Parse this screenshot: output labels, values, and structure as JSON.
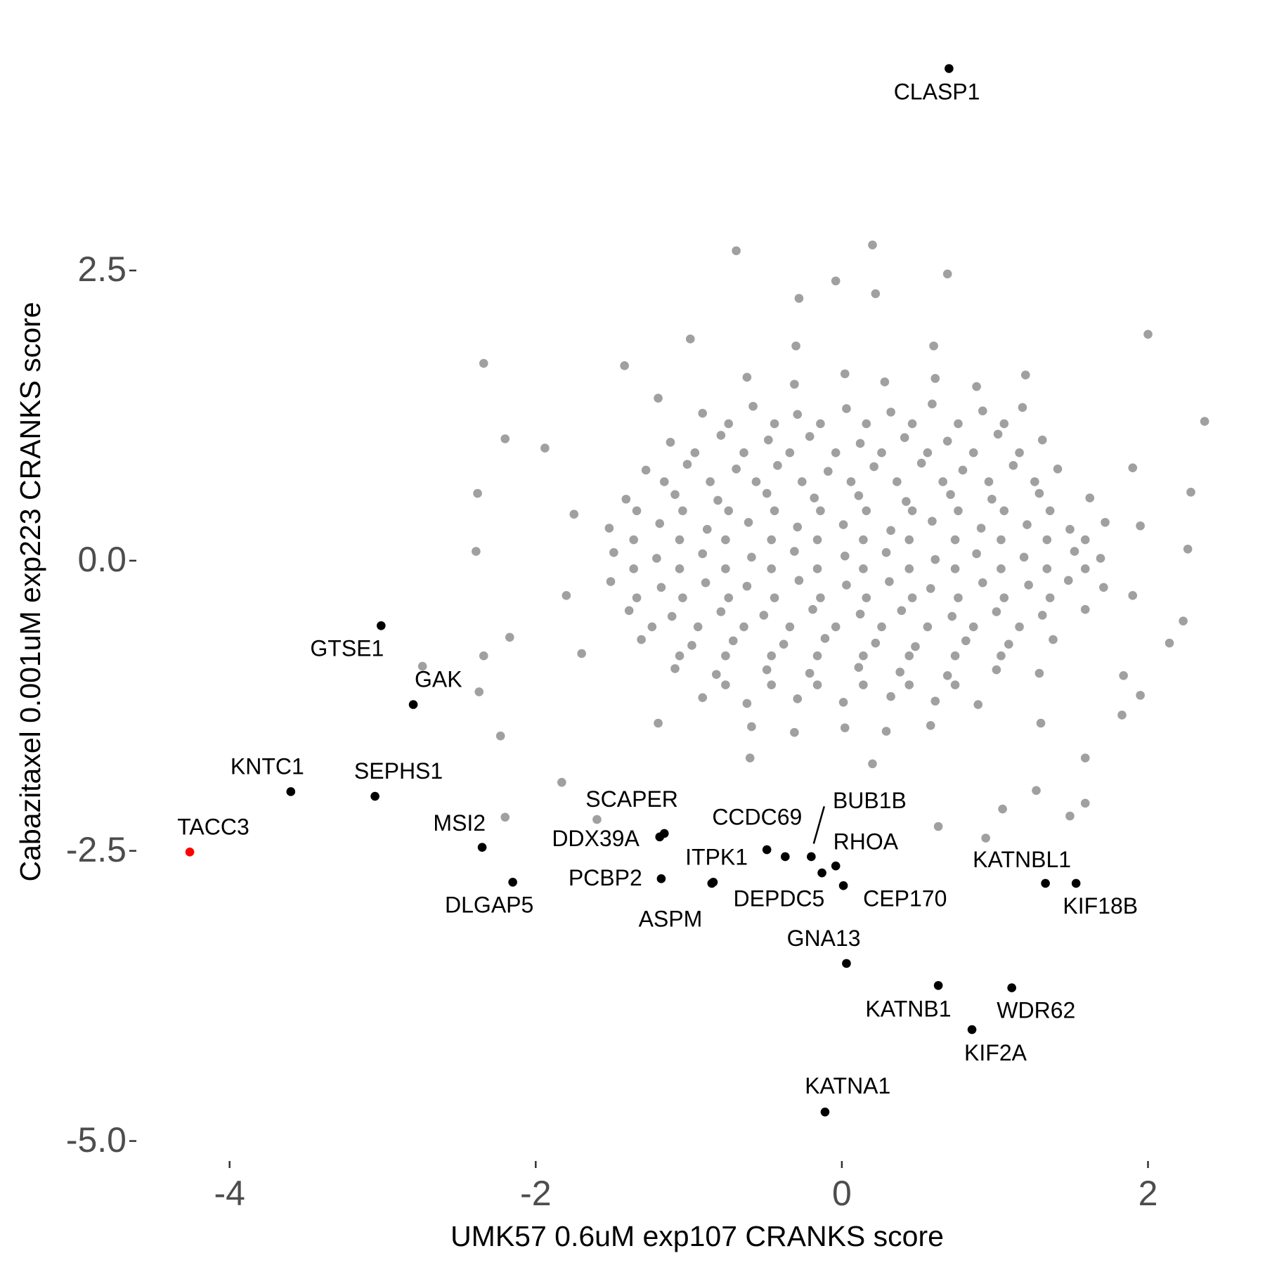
{
  "chart_data": {
    "type": "scatter",
    "xlabel": "UMK57 0.6uM exp107 CRANKS score",
    "ylabel": "Cabazitaxel 0.001uM exp223 CRANKS score",
    "xlim": [
      -4.6,
      2.42
    ],
    "ylim": [
      -5.16,
      4.34
    ],
    "xticks": [
      -4,
      -2,
      0,
      2
    ],
    "yticks": [
      2.5,
      {
        "value": 0,
        "label": "0.0"
      },
      -2.5,
      {
        "value": -5,
        "label": "-5.0"
      }
    ],
    "grid": false,
    "series": [
      {
        "color": "#a0a0a0",
        "x": [
          -0.62,
          -0.31,
          0.02,
          0.28,
          0.61,
          0.88,
          -0.91,
          -0.58,
          -0.29,
          0.03,
          0.32,
          0.59,
          0.92,
          1.18,
          -1.12,
          -0.79,
          -0.48,
          -0.21,
          0.12,
          0.41,
          0.69,
          1.02,
          1.31,
          -1.28,
          -1.01,
          -0.69,
          -0.42,
          -0.09,
          0.21,
          0.52,
          0.79,
          1.12,
          1.41,
          -1.41,
          -1.09,
          -0.81,
          -0.49,
          -0.18,
          0.11,
          0.42,
          0.71,
          0.98,
          1.29,
          1.62,
          -1.52,
          -1.19,
          -0.88,
          -0.61,
          -0.29,
          0.01,
          0.32,
          0.59,
          0.91,
          1.21,
          1.49,
          1.72,
          -1.49,
          -1.21,
          -0.91,
          -0.59,
          -0.31,
          0.02,
          0.29,
          0.61,
          0.88,
          1.19,
          1.52,
          1.69,
          -1.51,
          -1.18,
          -0.89,
          -0.62,
          -0.28,
          0.03,
          0.31,
          0.58,
          0.92,
          1.22,
          1.48,
          1.71,
          -1.39,
          -1.11,
          -0.79,
          -0.51,
          -0.19,
          0.12,
          0.39,
          0.72,
          1.01,
          1.31,
          1.59,
          -1.31,
          -0.98,
          -0.71,
          -0.38,
          -0.11,
          0.22,
          0.48,
          0.81,
          1.09,
          1.38,
          -1.09,
          -0.82,
          -0.49,
          -0.21,
          0.11,
          0.38,
          0.69,
          1.01,
          1.29,
          -0.91,
          -0.62,
          -0.29,
          0.01,
          0.32,
          0.61,
          0.89,
          -0.59,
          -0.31,
          0.02,
          0.29,
          0.58,
          -0.74,
          -0.44,
          -0.14,
          0.16,
          0.46,
          0.76,
          1.06,
          -0.96,
          -0.64,
          -0.34,
          -0.04,
          0.26,
          0.56,
          0.86,
          1.16,
          -1.16,
          -0.86,
          -0.56,
          -0.26,
          0.06,
          0.36,
          0.66,
          0.96,
          1.26,
          -1.34,
          -1.04,
          -0.74,
          -0.44,
          -0.14,
          0.16,
          0.46,
          0.76,
          1.06,
          1.36,
          -1.36,
          -1.06,
          -0.76,
          -0.46,
          -0.16,
          0.14,
          0.44,
          0.74,
          1.04,
          1.34,
          1.59,
          -1.36,
          -1.06,
          -0.76,
          -0.46,
          -0.16,
          0.14,
          0.44,
          0.74,
          1.04,
          1.34,
          1.59,
          -1.34,
          -1.04,
          -0.74,
          -0.44,
          -0.14,
          0.16,
          0.46,
          0.76,
          1.06,
          1.36,
          -1.24,
          -0.94,
          -0.64,
          -0.34,
          -0.04,
          0.26,
          0.56,
          0.86,
          1.16,
          -1.06,
          -0.76,
          -0.46,
          -0.16,
          0.14,
          0.44,
          0.74,
          1.04,
          -0.76,
          -0.46,
          -0.16,
          0.14,
          0.44,
          0.74,
          -0.69,
          0.2,
          -0.04,
          0.22,
          0.69,
          -0.28,
          2.0,
          2.37,
          2.28,
          2.26,
          2.23,
          2.14,
          1.84,
          1.95,
          1.83,
          1.59,
          1.59,
          1.27,
          1.05,
          0.63,
          -2.34,
          -2.38,
          -2.39,
          -2.74,
          -2.34,
          -2.37,
          -2.2,
          -2.23,
          -2.17,
          -1.94,
          -2.2,
          -1.83,
          -1.6,
          -1.42,
          -0.99,
          1.49,
          0.94,
          1.9,
          1.95,
          1.9,
          -1.75,
          -1.8,
          -1.7,
          0.6,
          -0.3,
          0.2,
          -0.6,
          1.2,
          -1.2,
          1.3,
          -1.2
        ],
        "values": [
          1.58,
          1.52,
          1.61,
          1.54,
          1.57,
          1.5,
          1.27,
          1.33,
          1.26,
          1.31,
          1.28,
          1.35,
          1.29,
          1.32,
          1.02,
          1.08,
          1.04,
          1.07,
          1.01,
          1.06,
          1.03,
          1.09,
          1.04,
          0.78,
          0.83,
          0.79,
          0.82,
          0.77,
          0.81,
          0.84,
          0.78,
          0.82,
          0.79,
          0.53,
          0.57,
          0.52,
          0.58,
          0.54,
          0.56,
          0.51,
          0.57,
          0.53,
          0.58,
          0.54,
          0.28,
          0.32,
          0.27,
          0.33,
          0.29,
          0.31,
          0.26,
          0.34,
          0.28,
          0.31,
          0.27,
          0.33,
          0.07,
          0.02,
          0.06,
          0.03,
          0.08,
          0.04,
          0.07,
          0.01,
          0.06,
          0.03,
          0.08,
          0.02,
          -0.18,
          -0.23,
          -0.19,
          -0.22,
          -0.17,
          -0.21,
          -0.18,
          -0.24,
          -0.19,
          -0.21,
          -0.17,
          -0.23,
          -0.43,
          -0.48,
          -0.44,
          -0.47,
          -0.42,
          -0.46,
          -0.43,
          -0.48,
          -0.44,
          -0.47,
          -0.42,
          -0.68,
          -0.73,
          -0.69,
          -0.72,
          -0.67,
          -0.71,
          -0.74,
          -0.69,
          -0.72,
          -0.68,
          -0.93,
          -0.98,
          -0.94,
          -0.97,
          -0.92,
          -0.96,
          -0.99,
          -0.94,
          -0.97,
          -1.18,
          -1.23,
          -1.19,
          -1.22,
          -1.17,
          -1.21,
          -1.24,
          -1.43,
          -1.48,
          -1.44,
          -1.47,
          -1.42,
          1.18,
          1.18,
          1.18,
          1.18,
          1.18,
          1.18,
          1.18,
          0.93,
          0.93,
          0.93,
          0.93,
          0.93,
          0.93,
          0.93,
          0.93,
          0.68,
          0.68,
          0.68,
          0.68,
          0.68,
          0.68,
          0.68,
          0.68,
          0.68,
          0.43,
          0.43,
          0.43,
          0.43,
          0.43,
          0.43,
          0.43,
          0.43,
          0.43,
          0.43,
          0.18,
          0.18,
          0.18,
          0.18,
          0.18,
          0.18,
          0.18,
          0.18,
          0.18,
          0.18,
          0.18,
          -0.07,
          -0.07,
          -0.07,
          -0.07,
          -0.07,
          -0.07,
          -0.07,
          -0.07,
          -0.07,
          -0.07,
          -0.07,
          -0.32,
          -0.32,
          -0.32,
          -0.32,
          -0.32,
          -0.32,
          -0.32,
          -0.32,
          -0.32,
          -0.32,
          -0.57,
          -0.57,
          -0.57,
          -0.57,
          -0.57,
          -0.57,
          -0.57,
          -0.57,
          -0.57,
          -0.82,
          -0.82,
          -0.82,
          -0.82,
          -0.82,
          -0.82,
          -0.82,
          -0.82,
          -1.07,
          -1.07,
          -1.07,
          -1.07,
          -1.07,
          -1.07,
          2.67,
          2.72,
          2.41,
          2.3,
          2.47,
          2.26,
          1.95,
          1.2,
          0.59,
          0.1,
          -0.52,
          -0.71,
          -0.99,
          -1.16,
          -1.33,
          -1.7,
          -2.09,
          -1.98,
          -2.14,
          -2.29,
          1.7,
          0.58,
          0.08,
          -0.91,
          -0.82,
          -1.13,
          -2.21,
          -1.51,
          -0.66,
          0.97,
          1.05,
          -1.91,
          -2.23,
          1.68,
          1.91,
          -2.2,
          -2.39,
          0.8,
          0.3,
          -0.3,
          0.4,
          -0.3,
          -0.8,
          1.85,
          1.85,
          -1.75,
          -1.7,
          1.6,
          1.4,
          -1.4,
          -1.4
        ]
      },
      {
        "color": "#000000",
        "labels": [
          "CLASP1",
          "GTSE1",
          "GAK",
          "KNTC1",
          "SEPHS1",
          "MSI2",
          "DLGAP5",
          "SCAPER",
          "DDX39A",
          "PCBP2",
          "ITPK1",
          "ASPM",
          "CCDC69",
          null,
          "BUB1B",
          "DEPDC5",
          "RHOA",
          "CEP170",
          "GNA13",
          "KATNB1",
          "WDR62",
          "KIF2A",
          "KATNA1",
          "KATNBL1",
          "KIF18B"
        ],
        "x": [
          0.7,
          -3.01,
          -2.8,
          -3.6,
          -3.05,
          -2.35,
          -2.15,
          -1.16,
          -1.19,
          -1.18,
          -0.84,
          -0.85,
          -0.49,
          -0.37,
          -0.2,
          -0.13,
          -0.04,
          0.01,
          0.03,
          0.63,
          1.11,
          0.85,
          -0.11,
          1.33,
          1.53
        ],
        "values": [
          4.24,
          -0.56,
          -1.24,
          -1.99,
          -2.03,
          -2.47,
          -2.77,
          -2.35,
          -2.38,
          -2.74,
          -2.77,
          -2.78,
          -2.49,
          -2.55,
          -2.55,
          -2.69,
          -2.63,
          -2.8,
          -3.47,
          -3.66,
          -3.68,
          -4.04,
          -4.75,
          -2.78,
          -2.78
        ]
      },
      {
        "color": "#ff0000",
        "labels": [
          "TACC3"
        ],
        "x": [
          -4.26
        ],
        "values": [
          -2.51
        ]
      }
    ]
  }
}
